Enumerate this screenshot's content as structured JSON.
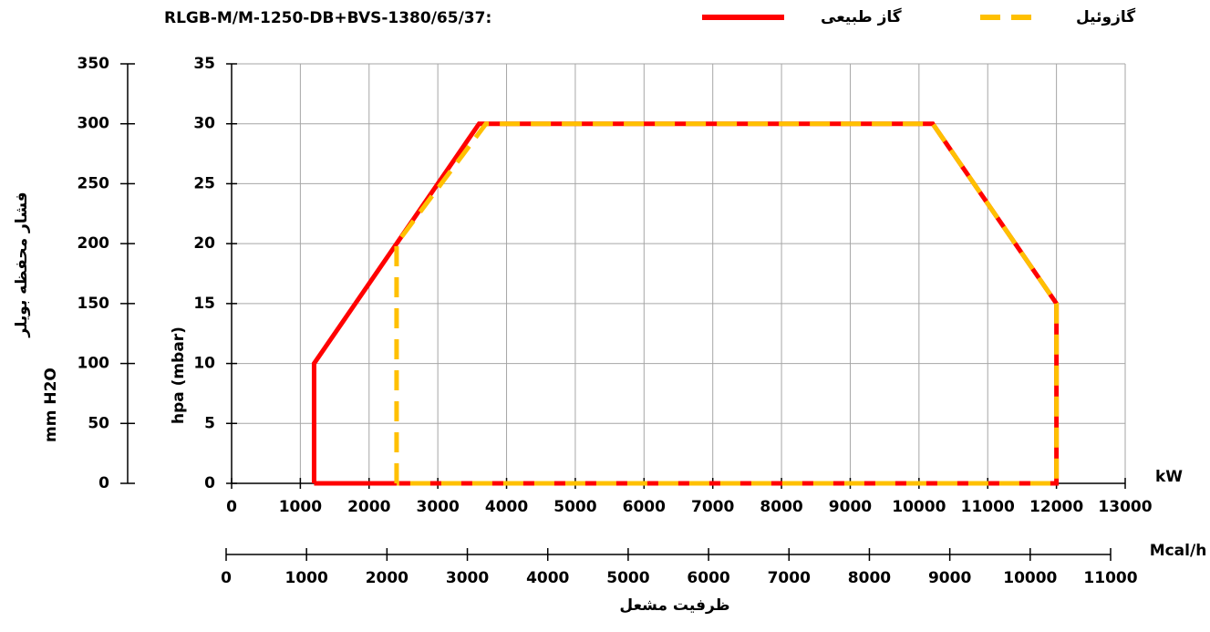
{
  "chart_data": {
    "type": "line",
    "title": "RLGB-M/M-1250-DB+BVS-1380/65/37:",
    "y_label": "hpa (mbar)",
    "y2_label": "mm H2O",
    "y2_title": "فشار محفظه بویلر",
    "x_label": "kW",
    "x2_label": "Mcal/h",
    "x_title": "ظرفیت مشعل",
    "xlim": [
      0,
      13000
    ],
    "xticks": [
      0,
      1000,
      2000,
      3000,
      4000,
      5000,
      6000,
      7000,
      8000,
      9000,
      10000,
      11000,
      12000,
      13000
    ],
    "x2lim": [
      0,
      11000
    ],
    "x2ticks": [
      0,
      1000,
      2000,
      3000,
      4000,
      5000,
      6000,
      7000,
      8000,
      9000,
      10000,
      11000
    ],
    "ylim": [
      0,
      35
    ],
    "yticks": [
      0,
      5,
      10,
      15,
      20,
      25,
      30,
      35
    ],
    "y2lim": [
      0,
      350
    ],
    "y2ticks": [
      0,
      50,
      100,
      150,
      200,
      250,
      300,
      350
    ],
    "grid": true,
    "series": [
      {
        "name": "گاز طبیعی",
        "color": "#ff0000",
        "dash": false,
        "x": [
          1200,
          1200,
          3600,
          10200,
          12000,
          12000,
          1200
        ],
        "values": [
          0,
          10,
          30,
          30,
          15,
          0,
          0
        ]
      },
      {
        "name": "گازوئیل",
        "color": "#ffc000",
        "dash": true,
        "x": [
          2400,
          2400,
          3700,
          10200,
          12000,
          12000,
          2400
        ],
        "values": [
          0,
          20,
          30,
          30,
          15,
          0,
          0
        ]
      }
    ]
  }
}
